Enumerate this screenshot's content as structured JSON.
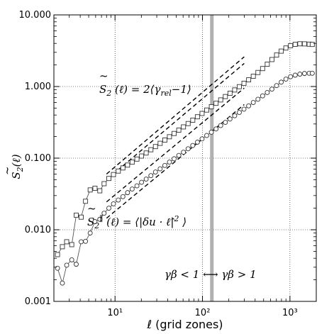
{
  "chart_data": {
    "type": "line",
    "title": "",
    "xlabel": "ℓ (grid zones)",
    "ylabel": "S̃₂(ℓ)",
    "xscale": "log",
    "yscale": "log",
    "xlim": [
      2,
      2000
    ],
    "ylim": [
      0.001,
      10
    ],
    "x_tick_values": [
      10,
      100,
      1000
    ],
    "x_tick_labels": [
      "10¹",
      "10²",
      "10³"
    ],
    "y_tick_values": [
      0.001,
      0.01,
      0.1,
      1,
      10
    ],
    "y_tick_labels": [
      "0.001",
      "0.010",
      "0.100",
      "1.000",
      "10.000"
    ],
    "grid": true,
    "legend": "none",
    "series": [
      {
        "marker": "square",
        "color": "#555555",
        "x": [
          2.2,
          2.5,
          2.8,
          3.2,
          3.6,
          4.1,
          4.6,
          5.2,
          5.9,
          6.7,
          7.5,
          8.5,
          9.6,
          10.9,
          12.3,
          13.9,
          15.7,
          17.8,
          20.1,
          22.7,
          25.7,
          29.0,
          32.8,
          37.1,
          41.9,
          47.4,
          53.6,
          60.6,
          68.5,
          77.4,
          87.5,
          98.9,
          111.8,
          126.4,
          142.9,
          161.5,
          182.6,
          206.4,
          233.3,
          263.7,
          298.1,
          337.0,
          381.0,
          430.7,
          486.9,
          550.4,
          622.2,
          703.3,
          795.0,
          898.7,
          1016.0,
          1148.5,
          1298.4,
          1467.8,
          1659.3,
          1800.0
        ],
        "y": [
          0.0045,
          0.0058,
          0.0068,
          0.0062,
          0.016,
          0.015,
          0.025,
          0.036,
          0.038,
          0.035,
          0.044,
          0.052,
          0.059,
          0.066,
          0.073,
          0.08,
          0.088,
          0.097,
          0.107,
          0.118,
          0.131,
          0.145,
          0.161,
          0.179,
          0.199,
          0.221,
          0.246,
          0.273,
          0.304,
          0.339,
          0.378,
          0.421,
          0.469,
          0.523,
          0.583,
          0.65,
          0.724,
          0.805,
          0.895,
          0.995,
          1.11,
          1.24,
          1.39,
          1.57,
          1.78,
          2.05,
          2.38,
          2.75,
          3.12,
          3.45,
          3.72,
          3.88,
          3.95,
          3.94,
          3.9,
          3.87
        ]
      },
      {
        "marker": "circle",
        "color": "#555555",
        "x": [
          2.2,
          2.5,
          2.8,
          3.2,
          3.6,
          4.1,
          4.6,
          5.2,
          5.9,
          6.7,
          7.5,
          8.5,
          9.6,
          10.9,
          12.3,
          13.9,
          15.7,
          17.8,
          20.1,
          22.7,
          25.7,
          29.0,
          32.8,
          37.1,
          41.9,
          47.4,
          53.6,
          60.6,
          68.5,
          77.4,
          87.5,
          98.9,
          111.8,
          126.4,
          142.9,
          161.5,
          182.6,
          206.4,
          233.3,
          263.7,
          298.1,
          337.0,
          381.0,
          430.7,
          486.9,
          550.4,
          622.2,
          703.3,
          795.0,
          898.7,
          1016.0,
          1148.5,
          1298.4,
          1467.8,
          1659.3,
          1800.0
        ],
        "y": [
          0.0029,
          0.0018,
          0.0032,
          0.0038,
          0.0033,
          0.0068,
          0.0069,
          0.009,
          0.013,
          0.014,
          0.017,
          0.02,
          0.023,
          0.026,
          0.029,
          0.033,
          0.037,
          0.041,
          0.046,
          0.051,
          0.057,
          0.064,
          0.071,
          0.079,
          0.088,
          0.098,
          0.109,
          0.121,
          0.135,
          0.15,
          0.167,
          0.186,
          0.207,
          0.23,
          0.256,
          0.285,
          0.316,
          0.352,
          0.391,
          0.435,
          0.483,
          0.537,
          0.598,
          0.665,
          0.74,
          0.825,
          0.92,
          1.03,
          1.15,
          1.27,
          1.37,
          1.44,
          1.49,
          1.52,
          1.53,
          1.53
        ]
      }
    ],
    "reference_lines": [
      {
        "style": "dashed",
        "x": [
          8,
          300
        ],
        "y": [
          0.06,
          2.6
        ]
      },
      {
        "style": "dashed",
        "x": [
          8,
          300
        ],
        "y": [
          0.05,
          2.1
        ]
      },
      {
        "style": "dashed",
        "x": [
          8,
          300
        ],
        "y": [
          0.0245,
          0.95
        ]
      },
      {
        "style": "dashed",
        "x": [
          8,
          300
        ],
        "y": [
          0.0145,
          0.56
        ]
      }
    ],
    "vertical_band": {
      "x": 128,
      "color": "#b0b0b0"
    },
    "annotations": [
      {
        "id": "s2",
        "text": "S̃₂(ℓ) = 2⟨γrel − 1⟩",
        "x": 13,
        "y": 1.6
      },
      {
        "id": "s2par",
        "text": "S̃₂∥(ℓ) = ⟨|δu⃗ · ℓ̂|²⟩",
        "x": 9,
        "y": 0.0125
      },
      {
        "id": "gb",
        "text": "γβ < 1 ⟷ γβ > 1",
        "x": 35,
        "y": 0.0018
      }
    ]
  }
}
